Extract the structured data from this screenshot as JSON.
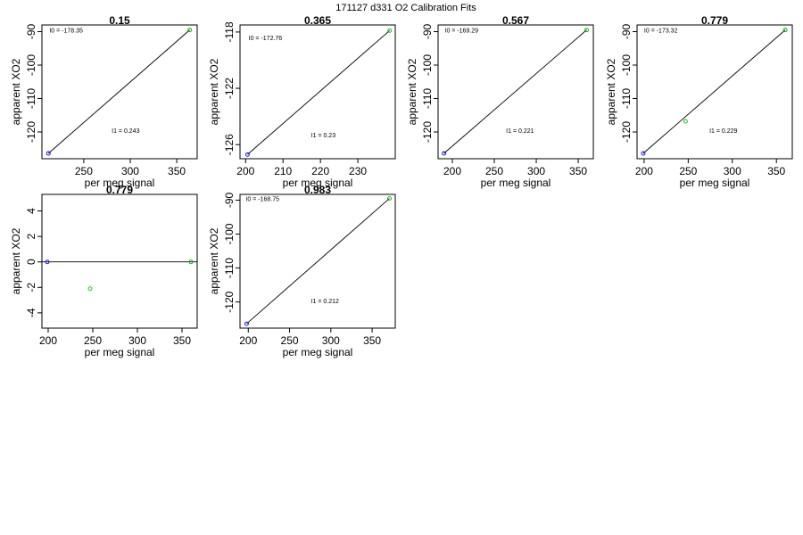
{
  "figure_title": "171127  d331   O2 Calibration Fits",
  "chart_data": [
    {
      "type": "scatter",
      "title": "0.15",
      "xlabel": "per meg signal",
      "ylabel": "apparent XO2",
      "xlim": [
        205,
        372
      ],
      "ylim": [
        -128,
        -88
      ],
      "xticks": [
        250,
        300,
        350
      ],
      "yticks": [
        -120,
        -110,
        -100,
        -90
      ],
      "points": [
        {
          "x": 212,
          "y": -126.4,
          "color": "#0000ff"
        },
        {
          "x": 364,
          "y": -89.5,
          "color": "#00aa00"
        }
      ],
      "fit_line": {
        "x": [
          212,
          364
        ],
        "y": [
          -126.4,
          -89.5
        ]
      },
      "annotations": [
        {
          "text": "I0 =  -178.35",
          "x": 213,
          "y": -89.5
        },
        {
          "text": "I1 =  0.243",
          "x": 280,
          "y": -119.5
        }
      ]
    },
    {
      "type": "scatter",
      "title": "0.365",
      "xlabel": "per meg signal",
      "ylabel": "apparent XO2",
      "xlim": [
        198.5,
        240
      ],
      "ylim": [
        -127,
        -117.5
      ],
      "xticks": [
        200,
        210,
        220,
        230
      ],
      "yticks": [
        -126,
        -122,
        -118
      ],
      "points": [
        {
          "x": 200.5,
          "y": -126.7,
          "color": "#0000ff"
        },
        {
          "x": 238.5,
          "y": -117.9,
          "color": "#00aa00"
        }
      ],
      "fit_line": {
        "x": [
          200.5,
          238.5
        ],
        "y": [
          -126.7,
          -117.9
        ]
      },
      "annotations": [
        {
          "text": "I0 =  -172.76",
          "x": 200.8,
          "y": -118.4
        },
        {
          "text": "I1 =  0.23",
          "x": 217.5,
          "y": -125.3
        }
      ]
    },
    {
      "type": "scatter",
      "title": "0.567",
      "xlabel": "per meg signal",
      "ylabel": "apparent XO2",
      "xlim": [
        183,
        368
      ],
      "ylim": [
        -128,
        -88
      ],
      "xticks": [
        200,
        250,
        300,
        350
      ],
      "yticks": [
        -120,
        -110,
        -100,
        -90
      ],
      "points": [
        {
          "x": 190,
          "y": -126.4,
          "color": "#0000ff"
        },
        {
          "x": 360,
          "y": -89.5,
          "color": "#00aa00"
        }
      ],
      "fit_line": {
        "x": [
          190,
          360
        ],
        "y": [
          -126.4,
          -89.5
        ]
      },
      "annotations": [
        {
          "text": "I0 =  -169.29",
          "x": 191,
          "y": -89.5
        },
        {
          "text": "I1 =  0.221",
          "x": 264,
          "y": -119.5
        }
      ]
    },
    {
      "type": "scatter",
      "title": "0.779",
      "xlabel": "per meg signal",
      "ylabel": "apparent XO2",
      "xlim": [
        192,
        368
      ],
      "ylim": [
        -128,
        -88
      ],
      "xticks": [
        200,
        250,
        300,
        350
      ],
      "yticks": [
        -120,
        -110,
        -100,
        -90
      ],
      "points": [
        {
          "x": 199,
          "y": -126.4,
          "color": "#0000ff"
        },
        {
          "x": 247,
          "y": -116.8,
          "color": "#00cc00"
        },
        {
          "x": 360,
          "y": -89.5,
          "color": "#00aa00"
        }
      ],
      "fit_line": {
        "x": [
          199,
          360
        ],
        "y": [
          -126.4,
          -89.5
        ]
      },
      "annotations": [
        {
          "text": "I0 =  -173.32",
          "x": 200,
          "y": -89.5
        },
        {
          "text": "I1 =  0.229",
          "x": 274,
          "y": -119.5
        }
      ]
    },
    {
      "type": "scatter",
      "title": "0.779",
      "xlabel": "per meg signal",
      "ylabel": "apparent XO2",
      "xlim": [
        193,
        367
      ],
      "ylim": [
        -5.2,
        5.3
      ],
      "xticks": [
        200,
        250,
        300,
        350
      ],
      "yticks": [
        -4,
        -2,
        0,
        2,
        4
      ],
      "points": [
        {
          "x": 199,
          "y": 0,
          "color": "#0000ff"
        },
        {
          "x": 247,
          "y": -2.1,
          "color": "#00cc00"
        },
        {
          "x": 360,
          "y": 0,
          "color": "#00aa00"
        }
      ],
      "fit_line": {
        "x": [
          193,
          367
        ],
        "y": [
          0,
          0
        ]
      },
      "annotations": []
    },
    {
      "type": "scatter",
      "title": "0.983",
      "xlabel": "per meg signal",
      "ylabel": "apparent XO2",
      "xlim": [
        190,
        378
      ],
      "ylim": [
        -127.7,
        -88.3
      ],
      "xticks": [
        200,
        250,
        300,
        350
      ],
      "yticks": [
        -120,
        -110,
        -100,
        -90
      ],
      "points": [
        {
          "x": 198,
          "y": -126.4,
          "color": "#0000ff"
        },
        {
          "x": 371,
          "y": -89.5,
          "color": "#00aa00"
        }
      ],
      "fit_line": {
        "x": [
          198,
          371
        ],
        "y": [
          -126.4,
          -89.5
        ]
      },
      "annotations": [
        {
          "text": "I0 =  -168.75",
          "x": 197,
          "y": -89.5
        },
        {
          "text": "I1 =  0.212",
          "x": 276,
          "y": -119.5
        }
      ]
    }
  ]
}
